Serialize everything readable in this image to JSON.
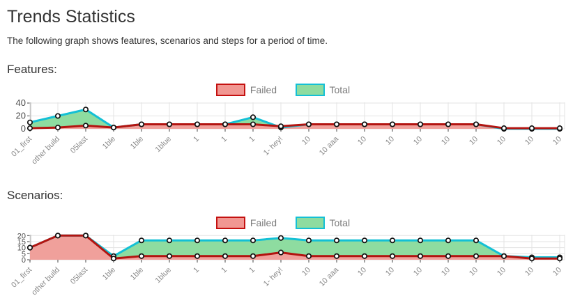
{
  "page": {
    "title": "Trends Statistics",
    "subtitle": "The following graph shows features, scenarios and steps for a period of time."
  },
  "colors": {
    "failed_line": "#b31410",
    "failed_fill": "#f0a09b",
    "failed_swatch_border": "#c41110",
    "failed_swatch_fill": "#f19792",
    "total_line": "#14c0d5",
    "total_fill": "#8edca0",
    "grid": "#e3e3e3",
    "axis": "#ababab",
    "tick": "#444444",
    "x_label": "#8a8a8a",
    "y_label": "#4d4d4d",
    "point_fill": "#ffffff",
    "point_stroke": "#111111"
  },
  "chart_data": [
    {
      "type": "area",
      "title": "Features:",
      "categories": [
        "01_first",
        "other build",
        "05last",
        "1ble",
        "1ble",
        "1blue",
        "1",
        "1",
        "1",
        "1- hey!",
        "10",
        "10 aaa",
        "10",
        "10",
        "10",
        "10",
        "10",
        "10",
        "10",
        "10"
      ],
      "series": [
        {
          "name": "Failed",
          "values": [
            1,
            2,
            5,
            2,
            7,
            7,
            7,
            7,
            7,
            4,
            7,
            7,
            7,
            7,
            7,
            7,
            7,
            1,
            1,
            1
          ]
        },
        {
          "name": "Total",
          "values": [
            10,
            20,
            30,
            2,
            7,
            7,
            7,
            7,
            18,
            2,
            7,
            7,
            7,
            7,
            7,
            7,
            7,
            0,
            0,
            0
          ]
        }
      ],
      "ylim": [
        0,
        40
      ],
      "yticks": [
        0,
        20,
        40
      ],
      "legend_position": "top-center",
      "grid": true,
      "x_tick_rotation": -45
    },
    {
      "type": "area",
      "title": "Scenarios:",
      "categories": [
        "01_first",
        "other build",
        "05last",
        "1ble",
        "1ble",
        "1blue",
        "1",
        "1",
        "1",
        "1- hey!",
        "10",
        "10 aaa",
        "10",
        "10",
        "10",
        "10",
        "10",
        "10",
        "10",
        "10"
      ],
      "series": [
        {
          "name": "Failed",
          "values": [
            10,
            20,
            20,
            1,
            3,
            3,
            3,
            3,
            3,
            6,
            3,
            3,
            3,
            3,
            3,
            3,
            3,
            3,
            1,
            1
          ]
        },
        {
          "name": "Total",
          "values": [
            10,
            20,
            20,
            3,
            16,
            16,
            16,
            16,
            16,
            18,
            16,
            16,
            16,
            16,
            16,
            16,
            16,
            3,
            2,
            2
          ]
        }
      ],
      "ylim": [
        0,
        20
      ],
      "yticks": [
        0,
        5,
        10,
        15,
        20
      ],
      "legend_position": "top-center",
      "grid": true,
      "x_tick_rotation": -45
    }
  ]
}
